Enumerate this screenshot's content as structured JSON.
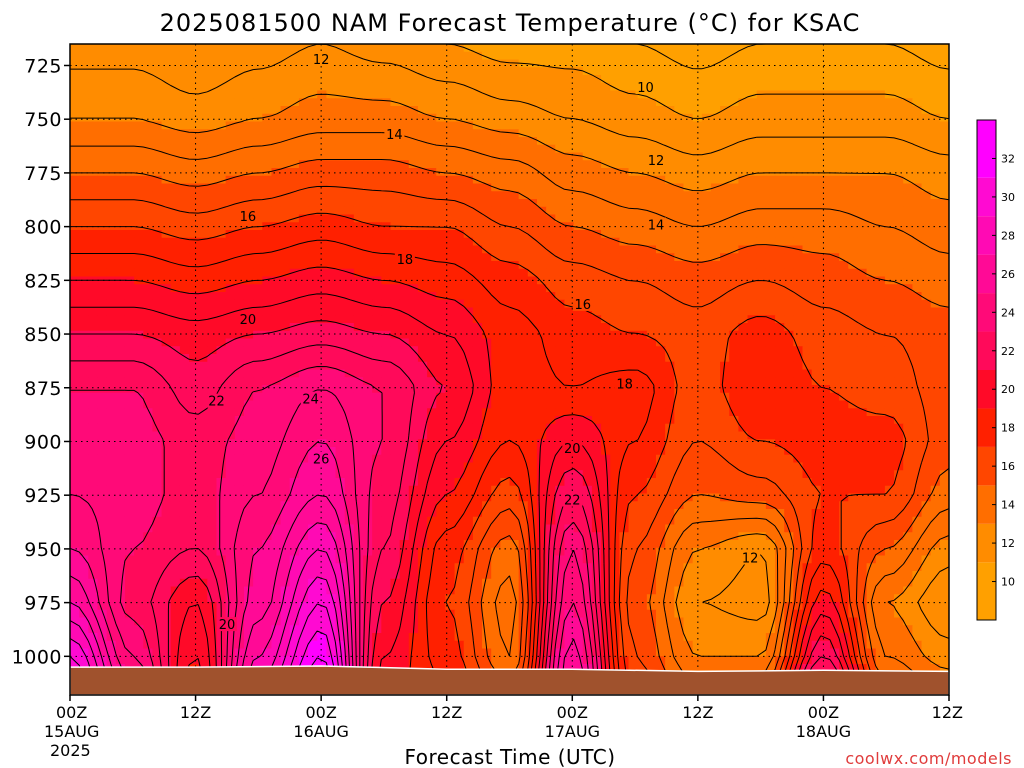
{
  "title": "2025081500 NAM Forecast Temperature (°C) for KSAC",
  "xlabel": "Forecast Time (UTC)",
  "credit": "coolwx.com/models",
  "chart_data": {
    "type": "heatmap",
    "title": "2025081500 NAM Forecast Temperature (°C) for KSAC",
    "xlabel": "Forecast Time (UTC)",
    "ylabel": "",
    "x_ticks": [
      {
        "hour": 0,
        "label": "00Z",
        "sub": "15AUG",
        "sub2": "2025"
      },
      {
        "hour": 12,
        "label": "12Z",
        "sub": "",
        "sub2": ""
      },
      {
        "hour": 24,
        "label": "00Z",
        "sub": "16AUG",
        "sub2": ""
      },
      {
        "hour": 36,
        "label": "12Z",
        "sub": "",
        "sub2": ""
      },
      {
        "hour": 48,
        "label": "00Z",
        "sub": "17AUG",
        "sub2": ""
      },
      {
        "hour": 60,
        "label": "12Z",
        "sub": "",
        "sub2": ""
      },
      {
        "hour": 72,
        "label": "00Z",
        "sub": "18AUG",
        "sub2": ""
      },
      {
        "hour": 84,
        "label": "12Z",
        "sub": "",
        "sub2": ""
      }
    ],
    "xlim": [
      0,
      84
    ],
    "y_ticks": [
      725,
      750,
      775,
      800,
      825,
      850,
      875,
      900,
      925,
      950,
      975,
      1000
    ],
    "ylim": [
      1018,
      715
    ],
    "y_inverted": true,
    "colorbar": {
      "min": 8,
      "max": 34,
      "labels": [
        10,
        12,
        14,
        16,
        18,
        20,
        22,
        24,
        26,
        28,
        30,
        32
      ],
      "colors": [
        {
          "from": 8,
          "to": 11,
          "color": "#ffa000"
        },
        {
          "from": 11,
          "to": 13,
          "color": "#ff8c00"
        },
        {
          "from": 13,
          "to": 15,
          "color": "#ff6e00"
        },
        {
          "from": 15,
          "to": 17,
          "color": "#ff4600"
        },
        {
          "from": 17,
          "to": 19,
          "color": "#ff2000"
        },
        {
          "from": 19,
          "to": 21,
          "color": "#ff0a28"
        },
        {
          "from": 21,
          "to": 23,
          "color": "#ff0a5a"
        },
        {
          "from": 23,
          "to": 25,
          "color": "#ff0a78"
        },
        {
          "from": 25,
          "to": 27,
          "color": "#ff0a96"
        },
        {
          "from": 27,
          "to": 29,
          "color": "#ff0ab4"
        },
        {
          "from": 29,
          "to": 31,
          "color": "#ff0ad2"
        },
        {
          "from": 31,
          "to": 34,
          "color": "#ff00ff"
        }
      ]
    },
    "profiles": [
      {
        "hour": 0,
        "levels": [
          [
            715,
            11.5
          ],
          [
            750,
            13.0
          ],
          [
            775,
            15.0
          ],
          [
            800,
            17.0
          ],
          [
            825,
            19.0
          ],
          [
            850,
            21.0
          ],
          [
            875,
            23.0
          ],
          [
            900,
            23.5
          ],
          [
            925,
            24.0
          ],
          [
            950,
            25.0
          ],
          [
            975,
            27.0
          ],
          [
            1000,
            30.0
          ],
          [
            1012,
            31.0
          ]
        ]
      },
      {
        "hour": 6,
        "levels": [
          [
            715,
            11.5
          ],
          [
            750,
            13.0
          ],
          [
            775,
            15.0
          ],
          [
            800,
            17.0
          ],
          [
            825,
            19.0
          ],
          [
            850,
            21.0
          ],
          [
            875,
            23.0
          ],
          [
            900,
            23.5
          ],
          [
            925,
            23.5
          ],
          [
            950,
            23.0
          ],
          [
            975,
            22.5
          ],
          [
            1000,
            24.0
          ],
          [
            1012,
            25.0
          ]
        ]
      },
      {
        "hour": 12,
        "levels": [
          [
            715,
            11.0
          ],
          [
            750,
            12.5
          ],
          [
            775,
            14.5
          ],
          [
            800,
            16.5
          ],
          [
            825,
            18.5
          ],
          [
            850,
            20.5
          ],
          [
            875,
            21.5
          ],
          [
            900,
            22.5
          ],
          [
            925,
            22.5
          ],
          [
            950,
            22.0
          ],
          [
            975,
            20.0
          ],
          [
            1000,
            19.0
          ],
          [
            1012,
            18.5
          ]
        ]
      },
      {
        "hour": 18,
        "levels": [
          [
            715,
            11.5
          ],
          [
            750,
            13.0
          ],
          [
            775,
            15.0
          ],
          [
            800,
            17.0
          ],
          [
            825,
            19.0
          ],
          [
            850,
            21.0
          ],
          [
            875,
            23.0
          ],
          [
            900,
            23.5
          ],
          [
            925,
            24.0
          ],
          [
            950,
            25.0
          ],
          [
            975,
            25.5
          ],
          [
            1000,
            27.0
          ],
          [
            1012,
            28.0
          ]
        ]
      },
      {
        "hour": 24,
        "levels": [
          [
            715,
            12.0
          ],
          [
            750,
            13.5
          ],
          [
            775,
            15.5
          ],
          [
            800,
            17.5
          ],
          [
            825,
            19.5
          ],
          [
            850,
            21.5
          ],
          [
            875,
            24.0
          ],
          [
            900,
            25.0
          ],
          [
            925,
            26.0
          ],
          [
            950,
            28.0
          ],
          [
            975,
            30.0
          ],
          [
            1000,
            32.0
          ],
          [
            1012,
            33.0
          ]
        ]
      },
      {
        "hour": 30,
        "levels": [
          [
            715,
            11.5
          ],
          [
            750,
            13.5
          ],
          [
            775,
            15.5
          ],
          [
            800,
            17.0
          ],
          [
            825,
            19.0
          ],
          [
            850,
            21.0
          ],
          [
            875,
            23.0
          ],
          [
            900,
            23.0
          ],
          [
            925,
            22.5
          ],
          [
            950,
            22.0
          ],
          [
            975,
            21.0
          ],
          [
            1000,
            20.0
          ],
          [
            1012,
            19.5
          ]
        ]
      },
      {
        "hour": 36,
        "levels": [
          [
            715,
            11.0
          ],
          [
            750,
            13.0
          ],
          [
            775,
            15.0
          ],
          [
            800,
            17.0
          ],
          [
            825,
            18.5
          ],
          [
            850,
            20.0
          ],
          [
            875,
            21.0
          ],
          [
            900,
            20.0
          ],
          [
            925,
            19.0
          ],
          [
            950,
            17.5
          ],
          [
            975,
            17.0
          ],
          [
            1000,
            17.5
          ],
          [
            1012,
            18.0
          ]
        ]
      },
      {
        "hour": 42,
        "levels": [
          [
            715,
            10.5
          ],
          [
            750,
            12.5
          ],
          [
            775,
            14.5
          ],
          [
            800,
            16.0
          ],
          [
            825,
            17.5
          ],
          [
            850,
            18.5
          ],
          [
            875,
            18.5
          ],
          [
            900,
            18.0
          ],
          [
            925,
            16.5
          ],
          [
            950,
            14.5
          ],
          [
            975,
            13.5
          ],
          [
            1000,
            14.0
          ],
          [
            1012,
            15.0
          ]
        ]
      },
      {
        "hour": 48,
        "levels": [
          [
            715,
            10.5
          ],
          [
            750,
            12.0
          ],
          [
            775,
            13.5
          ],
          [
            800,
            15.0
          ],
          [
            825,
            16.5
          ],
          [
            850,
            17.5
          ],
          [
            875,
            18.0
          ],
          [
            900,
            20.0
          ],
          [
            925,
            22.0
          ],
          [
            950,
            24.0
          ],
          [
            975,
            25.0
          ],
          [
            1000,
            26.5
          ],
          [
            1012,
            27.0
          ]
        ]
      },
      {
        "hour": 54,
        "levels": [
          [
            715,
            10.0
          ],
          [
            750,
            11.5
          ],
          [
            775,
            13.0
          ],
          [
            800,
            14.5
          ],
          [
            825,
            16.0
          ],
          [
            850,
            17.0
          ],
          [
            875,
            18.5
          ],
          [
            900,
            18.0
          ],
          [
            925,
            17.0
          ],
          [
            950,
            16.0
          ],
          [
            975,
            15.5
          ],
          [
            1000,
            16.0
          ],
          [
            1012,
            16.5
          ]
        ]
      },
      {
        "hour": 60,
        "levels": [
          [
            715,
            9.5
          ],
          [
            750,
            11.0
          ],
          [
            775,
            12.5
          ],
          [
            800,
            14.0
          ],
          [
            825,
            15.5
          ],
          [
            850,
            16.5
          ],
          [
            875,
            16.5
          ],
          [
            900,
            16.0
          ],
          [
            925,
            15.0
          ],
          [
            950,
            13.0
          ],
          [
            975,
            12.0
          ],
          [
            1000,
            13.0
          ],
          [
            1012,
            14.0
          ]
        ]
      },
      {
        "hour": 66,
        "levels": [
          [
            715,
            10.0
          ],
          [
            750,
            11.5
          ],
          [
            775,
            13.0
          ],
          [
            800,
            14.5
          ],
          [
            825,
            16.0
          ],
          [
            850,
            17.5
          ],
          [
            875,
            18.0
          ],
          [
            900,
            17.0
          ],
          [
            925,
            15.5
          ],
          [
            950,
            12.0
          ],
          [
            975,
            11.5
          ],
          [
            1000,
            13.0
          ],
          [
            1012,
            14.5
          ]
        ]
      },
      {
        "hour": 72,
        "levels": [
          [
            715,
            10.0
          ],
          [
            750,
            11.5
          ],
          [
            775,
            13.0
          ],
          [
            800,
            14.5
          ],
          [
            825,
            15.5
          ],
          [
            850,
            16.5
          ],
          [
            875,
            17.0
          ],
          [
            900,
            17.5
          ],
          [
            925,
            17.0
          ],
          [
            950,
            17.5
          ],
          [
            975,
            19.5
          ],
          [
            1000,
            22.0
          ],
          [
            1012,
            24.0
          ]
        ]
      },
      {
        "hour": 78,
        "levels": [
          [
            715,
            10.0
          ],
          [
            750,
            11.5
          ],
          [
            775,
            13.0
          ],
          [
            800,
            14.0
          ],
          [
            825,
            15.0
          ],
          [
            850,
            16.0
          ],
          [
            875,
            16.5
          ],
          [
            900,
            17.5
          ],
          [
            925,
            17.0
          ],
          [
            950,
            15.0
          ],
          [
            975,
            13.0
          ],
          [
            1000,
            14.0
          ],
          [
            1012,
            15.0
          ]
        ]
      },
      {
        "hour": 84,
        "levels": [
          [
            715,
            9.5
          ],
          [
            750,
            11.0
          ],
          [
            775,
            12.5
          ],
          [
            800,
            13.5
          ],
          [
            825,
            14.5
          ],
          [
            850,
            15.5
          ],
          [
            875,
            15.5
          ],
          [
            900,
            15.5
          ],
          [
            925,
            14.5
          ],
          [
            950,
            12.5
          ],
          [
            975,
            11.0
          ],
          [
            1000,
            12.5
          ],
          [
            1012,
            13.5
          ]
        ]
      }
    ],
    "contour_interval": 1,
    "contour_labels": [
      {
        "text": "12",
        "hour": 24,
        "p": 722
      },
      {
        "text": "10",
        "hour": 55,
        "p": 735
      },
      {
        "text": "14",
        "hour": 31,
        "p": 757
      },
      {
        "text": "12",
        "hour": 56,
        "p": 769
      },
      {
        "text": "16",
        "hour": 17,
        "p": 795
      },
      {
        "text": "14",
        "hour": 56,
        "p": 799
      },
      {
        "text": "18",
        "hour": 32,
        "p": 815
      },
      {
        "text": "16",
        "hour": 49,
        "p": 836
      },
      {
        "text": "20",
        "hour": 17,
        "p": 843
      },
      {
        "text": "18",
        "hour": 53,
        "p": 873
      },
      {
        "text": "22",
        "hour": 14,
        "p": 881
      },
      {
        "text": "24",
        "hour": 23,
        "p": 880
      },
      {
        "text": "26",
        "hour": 24,
        "p": 908
      },
      {
        "text": "20",
        "hour": 48,
        "p": 903
      },
      {
        "text": "22",
        "hour": 48,
        "p": 927
      },
      {
        "text": "12",
        "hour": 65,
        "p": 954
      },
      {
        "text": "20",
        "hour": 15,
        "p": 985
      }
    ],
    "surface_pressure": [
      [
        0,
        1005
      ],
      [
        12,
        1005
      ],
      [
        24,
        1004.5
      ],
      [
        36,
        1006
      ],
      [
        48,
        1006
      ],
      [
        60,
        1007
      ],
      [
        72,
        1006.5
      ],
      [
        84,
        1007
      ]
    ],
    "terrain_color": "#a0522d",
    "frame_color": "#000000",
    "grid": true,
    "grid_style": "dotted",
    "colorbar_position": "right"
  }
}
